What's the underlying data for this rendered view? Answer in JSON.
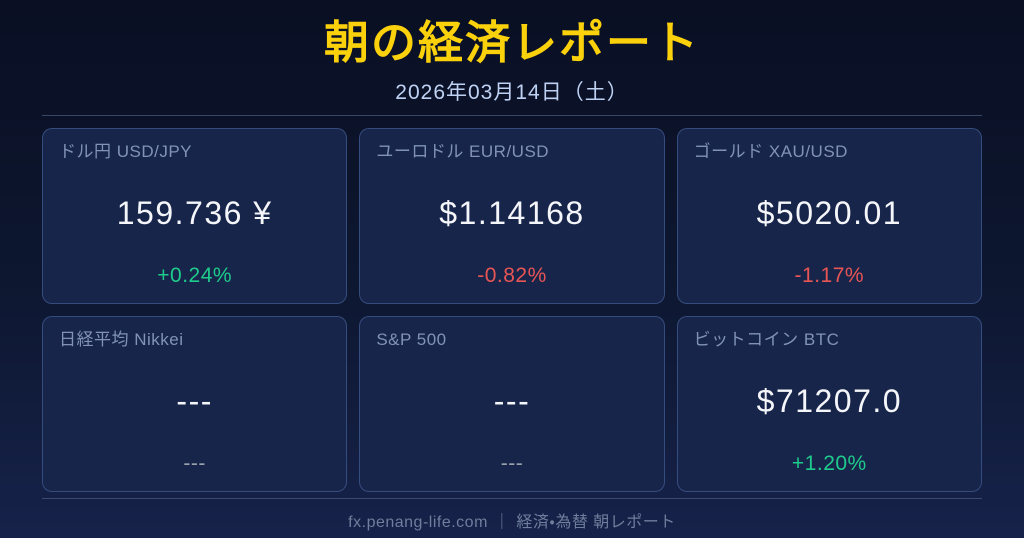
{
  "header": {
    "title": "朝の経済レポート",
    "date": "2026年03月14日（土）"
  },
  "cards": [
    {
      "label": "ドル円 USD/JPY",
      "value": "159.736 ¥",
      "change": "+0.24%",
      "trend": "up"
    },
    {
      "label": "ユーロドル EUR/USD",
      "value": "$1.14168",
      "change": "-0.82%",
      "trend": "down"
    },
    {
      "label": "ゴールド XAU/USD",
      "value": "$5020.01",
      "change": "-1.17%",
      "trend": "down"
    },
    {
      "label": "日経平均 Nikkei",
      "value": "---",
      "change": "---",
      "trend": "flat"
    },
    {
      "label": "S&P 500",
      "value": "---",
      "change": "---",
      "trend": "flat"
    },
    {
      "label": "ビットコイン BTC",
      "value": "$71207.0",
      "change": "+1.20%",
      "trend": "up"
    }
  ],
  "footer": {
    "site": "fx.penang-life.com",
    "separator": "｜",
    "label": "経済・為替 朝レポート"
  },
  "colors": {
    "title_accent": "#FBD10C",
    "positive": "#1ECB8C",
    "negative": "#E85555",
    "neutral": "#99A1AD"
  }
}
